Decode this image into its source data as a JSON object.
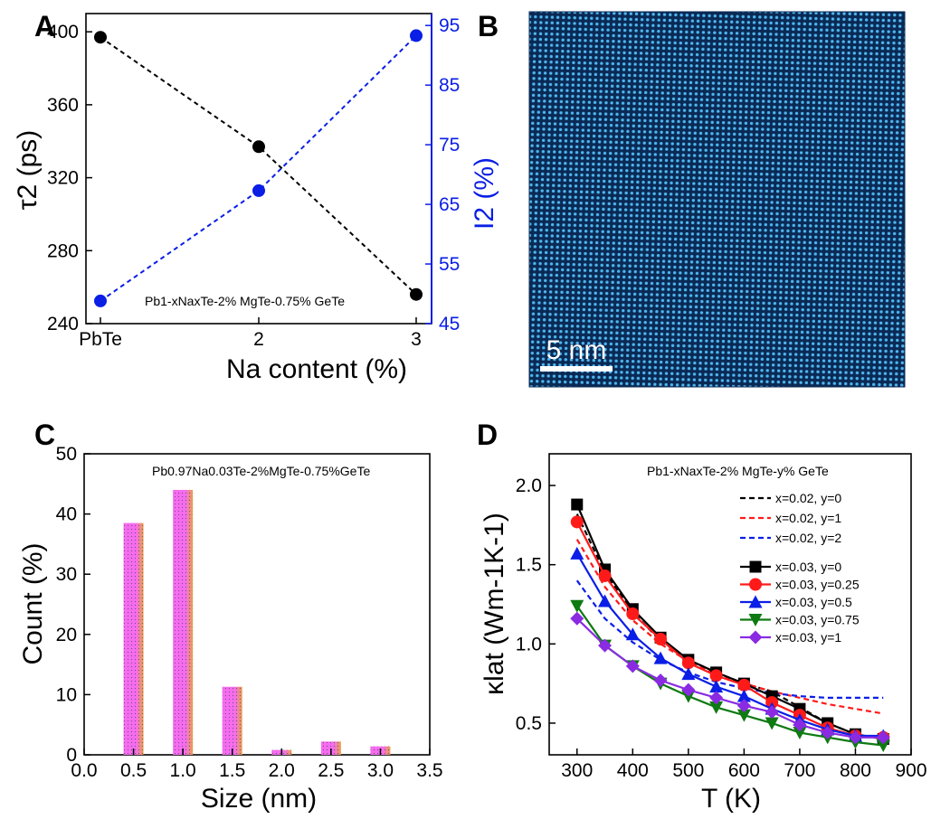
{
  "panels": {
    "a": {
      "letter": "A"
    },
    "b": {
      "letter": "B",
      "scale_bar": "5 nm"
    },
    "c": {
      "letter": "C"
    },
    "d": {
      "letter": "D"
    }
  },
  "colors": {
    "black": "#000000",
    "blue": "#0a1ee6",
    "red": "#ff1a1a",
    "green": "#0e7a12",
    "violet": "#8a2be2",
    "bar_pink": "#f56cf0",
    "bar_orange": "#e8a04a",
    "stem_bg": "#0a2a55",
    "stem_atom": "#4fb7ef"
  },
  "chart_data": [
    {
      "id": "A",
      "type": "line",
      "categories": [
        "PbTe",
        "2",
        "3"
      ],
      "x": [
        0,
        2,
        3
      ],
      "xlabel": "Na content (%)",
      "ylabel": "τ2 (ps)",
      "y2label": "I2 (%)",
      "ylim": [
        240,
        410
      ],
      "yticks": [
        240,
        280,
        320,
        360,
        400
      ],
      "y2lim": [
        45,
        97
      ],
      "y2ticks": [
        45,
        55,
        65,
        75,
        85,
        95
      ],
      "annotation": "Pb1-xNaxTe-2% MgTe-0.75% GeTe",
      "series": [
        {
          "axis": "left",
          "color": "#000000",
          "values": [
            397,
            337,
            256
          ]
        },
        {
          "axis": "right",
          "color": "#0a1ee6",
          "values": [
            48.8,
            67.3,
            93.3
          ]
        }
      ]
    },
    {
      "id": "C",
      "type": "bar",
      "categories": [
        "0.5",
        "1.0",
        "1.5",
        "2.0",
        "2.5",
        "3.0"
      ],
      "x": [
        0.5,
        1.0,
        1.5,
        2.0,
        2.5,
        3.0
      ],
      "values": [
        38.5,
        44.0,
        11.3,
        0.8,
        2.2,
        1.4
      ],
      "xlabel": "Size (nm)",
      "ylabel": "Count (%)",
      "xlim": [
        0.0,
        3.5
      ],
      "xticks": [
        "0.0",
        "0.5",
        "1.0",
        "1.5",
        "2.0",
        "2.5",
        "3.0",
        "3.5"
      ],
      "ylim": [
        0,
        50
      ],
      "yticks": [
        0,
        10,
        20,
        30,
        40,
        50
      ],
      "annotation": "Pb0.97Na0.03Te-2%MgTe-0.75%GeTe"
    },
    {
      "id": "D",
      "type": "line",
      "xlabel": "T (K)",
      "ylabel": "κlat (Wm-1K-1)",
      "xlim": [
        250,
        900
      ],
      "xticks": [
        300,
        400,
        500,
        600,
        700,
        800,
        900
      ],
      "ylim": [
        0.3,
        2.2
      ],
      "yticks": [
        "0.5",
        "1.0",
        "1.5",
        "2.0"
      ],
      "annotation": "Pb1-xNaxTe-2% MgTe-y% GeTe",
      "dashed_series": [
        {
          "name": "x=0.02, y=0",
          "color": "#000000",
          "x": [
            300,
            350,
            400,
            450,
            500,
            550,
            600,
            650,
            700,
            750,
            800,
            850
          ],
          "y": [
            1.82,
            1.45,
            1.2,
            1.02,
            0.9,
            0.82,
            0.75,
            0.7,
            0.6,
            0.5,
            0.43,
            0.4
          ]
        },
        {
          "name": "x=0.02, y=1",
          "color": "#ff1a1a",
          "x": [
            300,
            350,
            400,
            450,
            500,
            550,
            600,
            650,
            700,
            750,
            800,
            850
          ],
          "y": [
            1.66,
            1.36,
            1.15,
            1.0,
            0.89,
            0.81,
            0.75,
            0.7,
            0.66,
            0.62,
            0.59,
            0.56
          ]
        },
        {
          "name": "x=0.02, y=2",
          "color": "#0a1ee6",
          "x": [
            300,
            350,
            400,
            450,
            500,
            550,
            600,
            650,
            700,
            750,
            800,
            850
          ],
          "y": [
            1.4,
            1.16,
            1.01,
            0.9,
            0.82,
            0.76,
            0.72,
            0.69,
            0.67,
            0.66,
            0.66,
            0.66
          ]
        }
      ],
      "marker_series": [
        {
          "name": "x=0.03, y=0",
          "color": "#000000",
          "marker": "square",
          "x": [
            300,
            350,
            400,
            450,
            500,
            550,
            600,
            650,
            700,
            750,
            800,
            850
          ],
          "y": [
            1.88,
            1.47,
            1.22,
            1.04,
            0.9,
            0.82,
            0.75,
            0.67,
            0.59,
            0.5,
            0.43,
            0.4
          ]
        },
        {
          "name": "x=0.03, y=0.25",
          "color": "#ff1a1a",
          "marker": "circle",
          "x": [
            300,
            350,
            400,
            450,
            500,
            550,
            600,
            650,
            700,
            750,
            800,
            850
          ],
          "y": [
            1.77,
            1.43,
            1.19,
            1.03,
            0.88,
            0.8,
            0.74,
            0.63,
            0.55,
            0.47,
            0.42,
            0.41
          ]
        },
        {
          "name": "x=0.03, y=0.5",
          "color": "#0a1ee6",
          "marker": "triangle-up",
          "x": [
            300,
            350,
            400,
            450,
            500,
            550,
            600,
            650,
            700,
            750,
            800,
            850
          ],
          "y": [
            1.57,
            1.27,
            1.06,
            0.91,
            0.81,
            0.73,
            0.67,
            0.59,
            0.52,
            0.46,
            0.42,
            0.42
          ]
        },
        {
          "name": "x=0.03, y=0.75",
          "color": "#0e7a12",
          "marker": "triangle-down",
          "x": [
            300,
            350,
            400,
            450,
            500,
            550,
            600,
            650,
            700,
            750,
            800,
            850
          ],
          "y": [
            1.24,
            0.99,
            0.86,
            0.75,
            0.67,
            0.6,
            0.55,
            0.5,
            0.44,
            0.41,
            0.38,
            0.36
          ]
        },
        {
          "name": "x=0.03, y=1",
          "color": "#8a2be2",
          "marker": "diamond",
          "x": [
            300,
            350,
            400,
            450,
            500,
            550,
            600,
            650,
            700,
            750,
            800,
            850
          ],
          "y": [
            1.16,
            0.99,
            0.86,
            0.77,
            0.71,
            0.66,
            0.61,
            0.57,
            0.49,
            0.44,
            0.41,
            0.41
          ]
        }
      ]
    }
  ]
}
